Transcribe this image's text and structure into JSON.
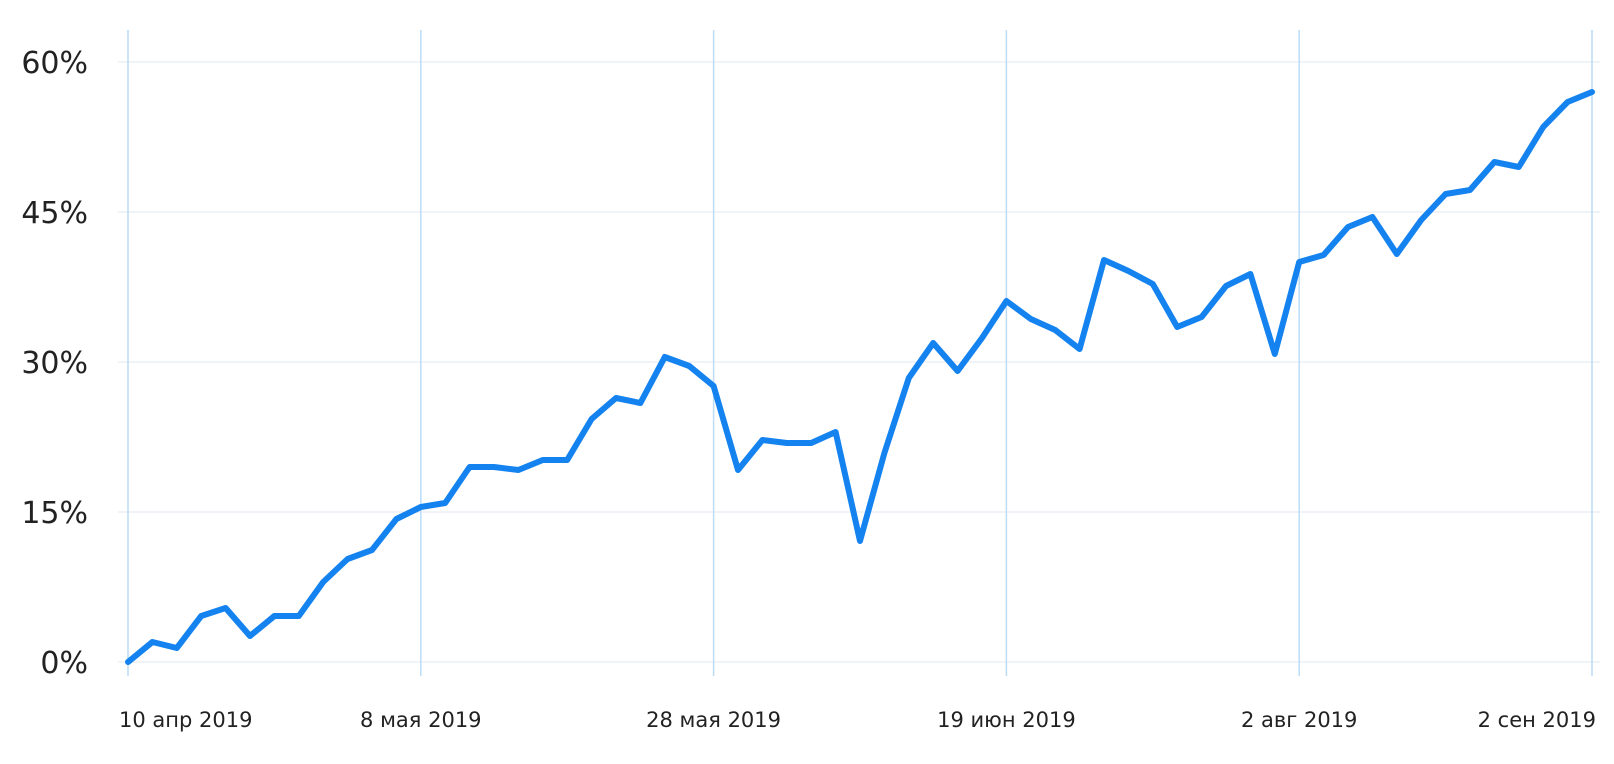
{
  "chart_data": {
    "type": "line",
    "title": "",
    "xlabel": "",
    "ylabel": "",
    "ylim": [
      0,
      60
    ],
    "y_ticks": [
      {
        "value": 0,
        "label": "0%"
      },
      {
        "value": 15,
        "label": "15%"
      },
      {
        "value": 30,
        "label": "30%"
      },
      {
        "value": 45,
        "label": "45%"
      },
      {
        "value": 60,
        "label": "60%"
      }
    ],
    "x_ticks": [
      {
        "index": 0,
        "label": "10 апр 2019"
      },
      {
        "index": 12,
        "label": "8 мая 2019"
      },
      {
        "index": 24,
        "label": "28 мая 2019"
      },
      {
        "index": 36,
        "label": "19 июн 2019"
      },
      {
        "index": 48,
        "label": "2 авг 2019"
      },
      {
        "index": 60,
        "label": "2 сен 2019"
      }
    ],
    "grid": true,
    "legend": "none",
    "colors": {
      "line": "#1483f0",
      "vgrid": "#bcdcf7",
      "hgrid": "#e6eef5"
    },
    "series": [
      {
        "values": [
          0.0,
          2.0,
          1.4,
          4.6,
          5.4,
          2.6,
          4.6,
          4.6,
          8.0,
          10.3,
          11.2,
          14.3,
          15.5,
          15.9,
          19.5,
          19.5,
          19.2,
          20.2,
          20.2,
          24.3,
          26.4,
          25.9,
          30.5,
          29.6,
          27.6,
          19.2,
          22.2,
          21.9,
          21.9,
          23.0,
          12.1,
          20.9,
          28.4,
          31.9,
          29.1,
          32.4,
          36.1,
          34.3,
          33.2,
          31.3,
          40.2,
          39.1,
          37.8,
          33.5,
          34.5,
          37.6,
          38.8,
          30.8,
          40.0,
          40.7,
          43.5,
          44.5,
          40.8,
          44.2,
          46.8,
          47.2,
          50.0,
          49.5,
          53.5,
          56.0,
          57.0
        ]
      }
    ]
  }
}
